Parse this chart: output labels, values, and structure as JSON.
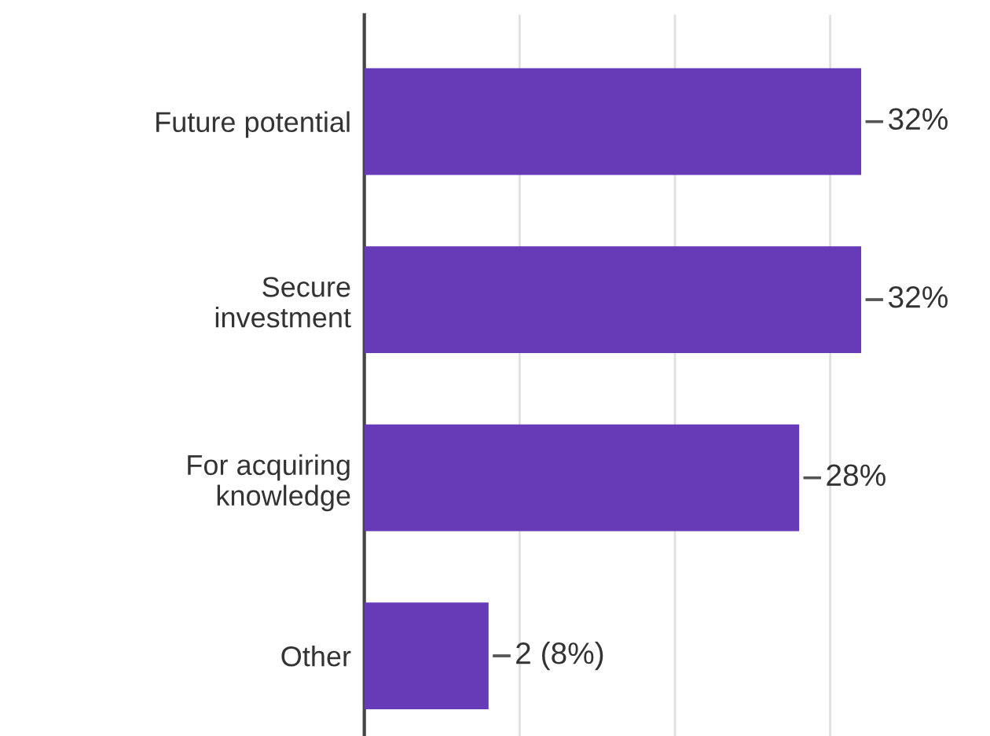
{
  "chart_data": {
    "type": "bar",
    "orientation": "horizontal",
    "categories": [
      "Future potential",
      "Secure\ninvestment",
      "For acquiring\nknowledge",
      "Other"
    ],
    "values": [
      32,
      32,
      28,
      8
    ],
    "value_labels": [
      "32%",
      "32%",
      "28%",
      "2 (8%)"
    ],
    "color": "#673ab7",
    "xlim": [
      0,
      32
    ],
    "xticks": [
      {
        "value": 10,
        "label": null
      },
      {
        "value": 20,
        "label": null
      },
      {
        "value": 30,
        "label": null
      }
    ],
    "grid": "x"
  }
}
